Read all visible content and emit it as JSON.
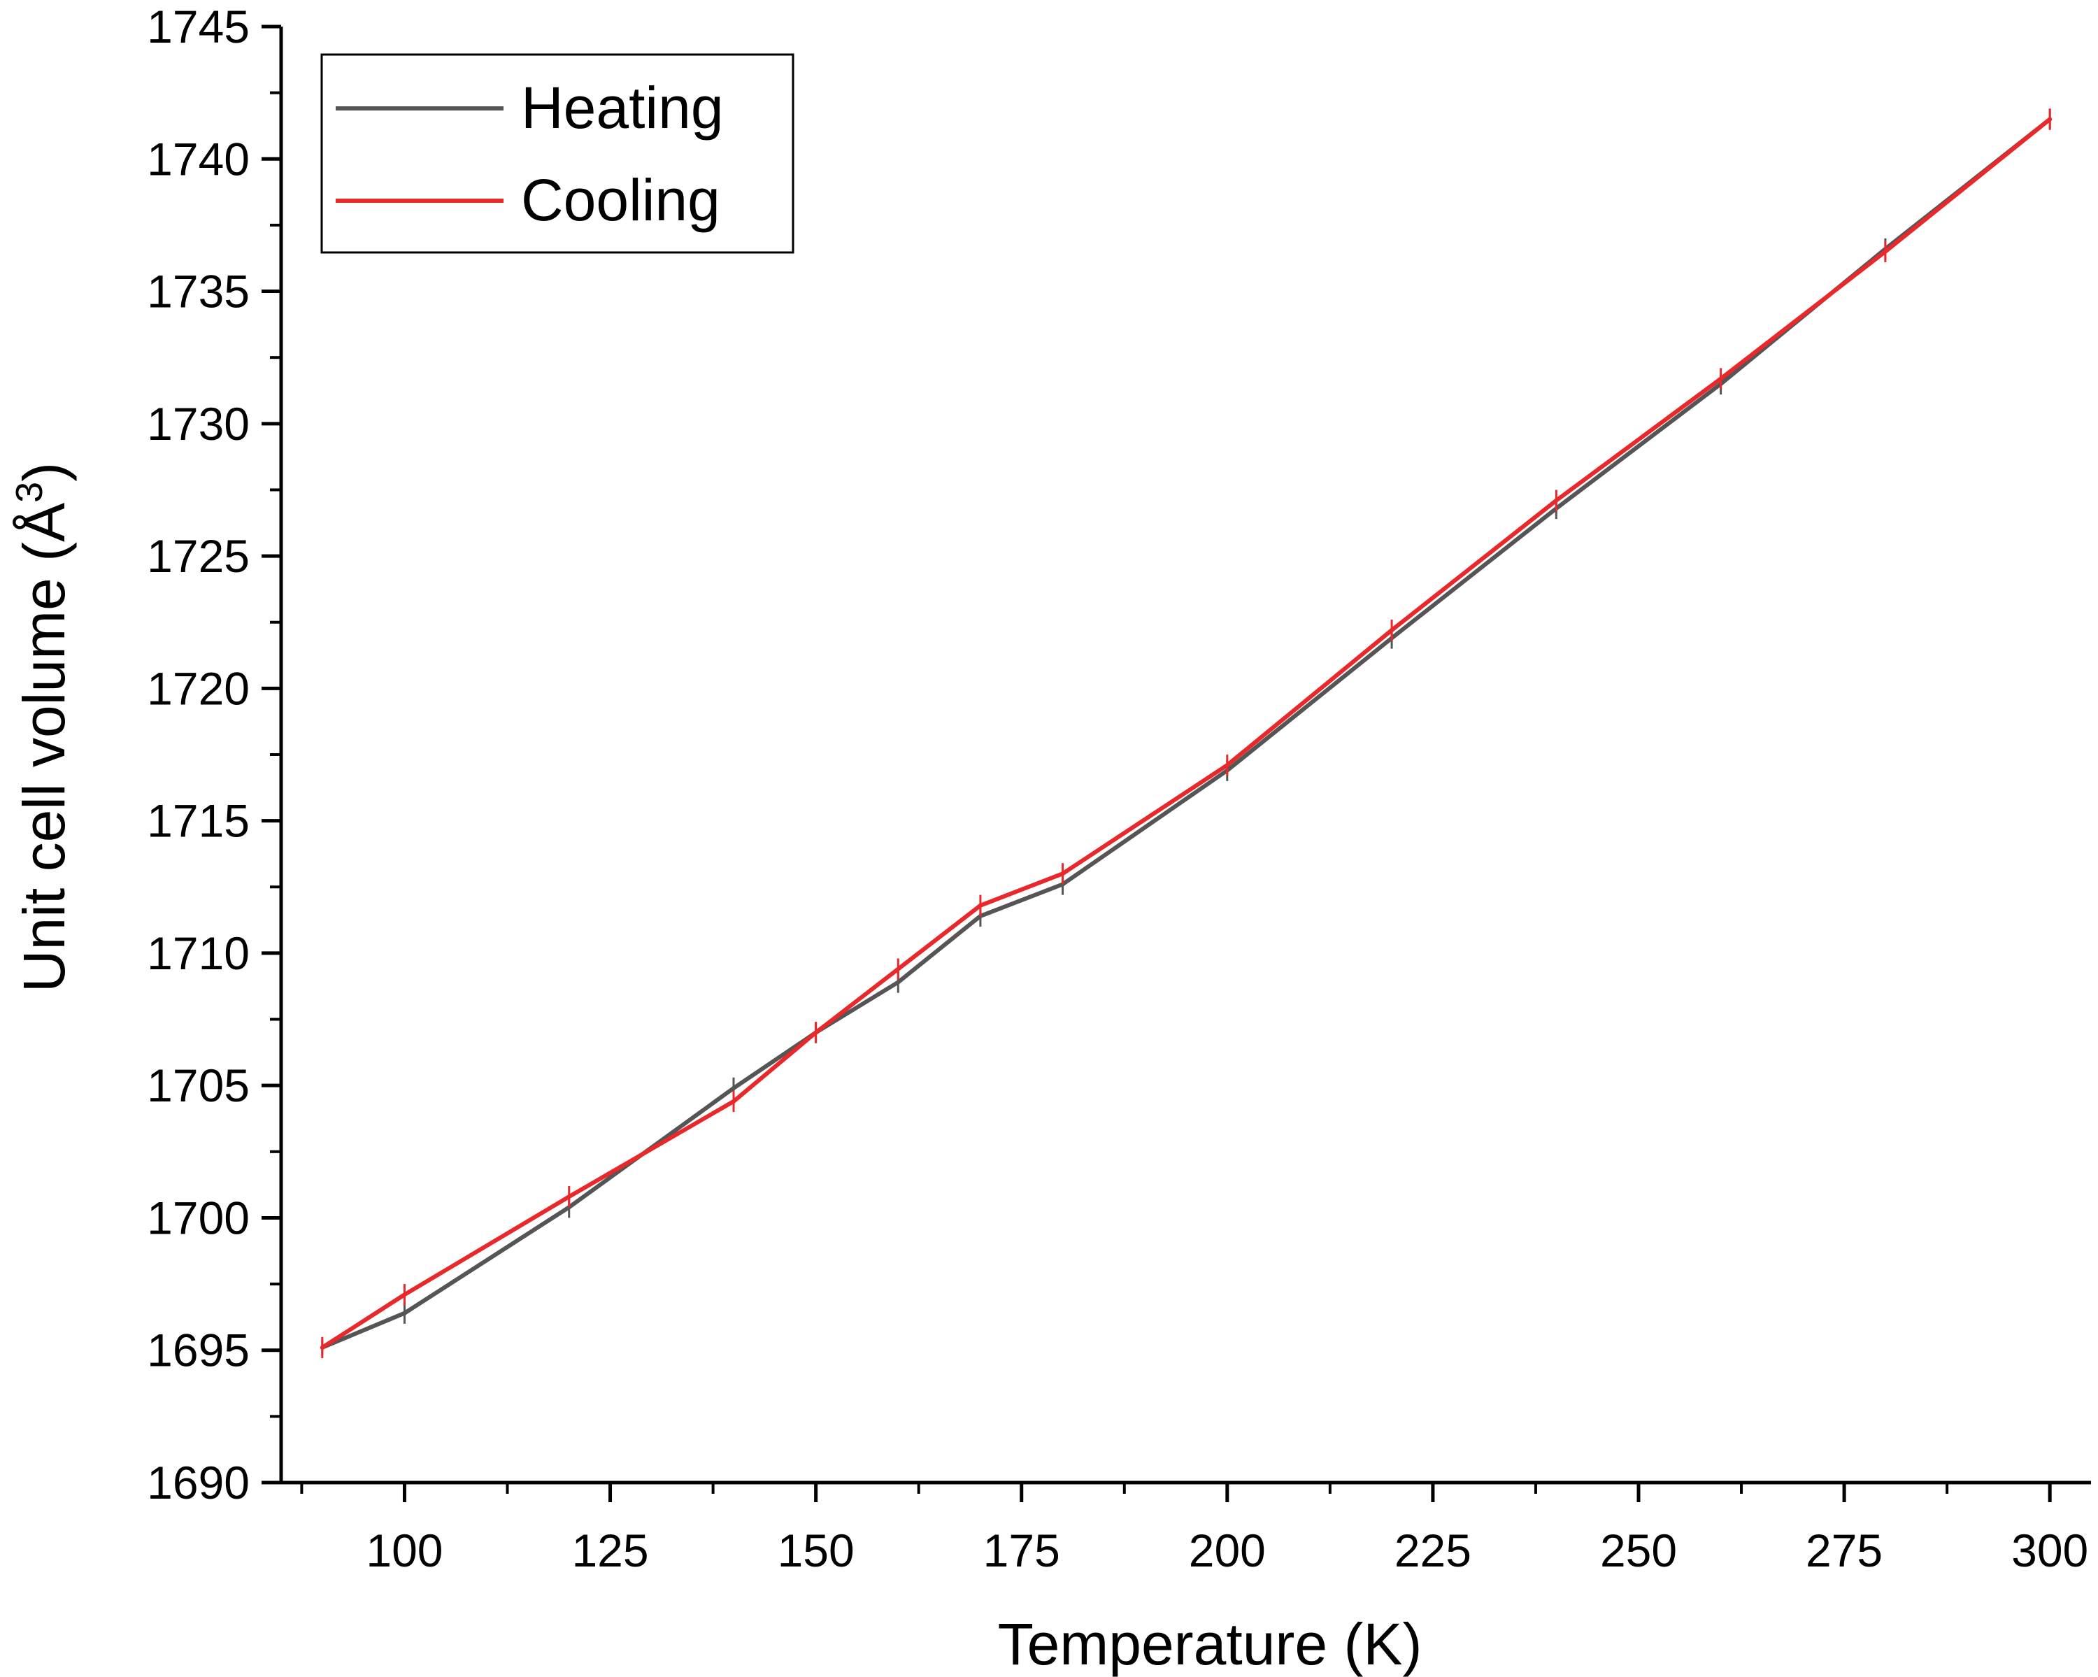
{
  "chart_data": {
    "type": "line",
    "title": "",
    "xlabel": "Temperature (K)",
    "ylabel": "Unit cell volume (Å",
    "ylabel_superscript": "3",
    "ylabel_close": ")",
    "xlim": [
      85,
      305
    ],
    "ylim": [
      1690,
      1745
    ],
    "x_ticks": [
      100,
      125,
      150,
      175,
      200,
      225,
      250,
      275,
      300
    ],
    "x_tick_labels": [
      "100",
      "125",
      "150",
      "175",
      "200",
      "225",
      "250",
      "275",
      "300"
    ],
    "y_ticks": [
      1690,
      1695,
      1700,
      1705,
      1710,
      1715,
      1720,
      1725,
      1730,
      1735,
      1740,
      1745
    ],
    "y_tick_labels": [
      "1690",
      "1695",
      "1700",
      "1705",
      "1710",
      "1715",
      "1720",
      "1725",
      "1730",
      "1735",
      "1740",
      "1745"
    ],
    "grid": false,
    "legend_position": "top-left",
    "error_bars": true,
    "series": [
      {
        "name": "Heating",
        "color": "#555555",
        "x": [
          90,
          100,
          120,
          140,
          150,
          160,
          170,
          180,
          200,
          220,
          240,
          260,
          280,
          300
        ],
        "y": [
          1695.1,
          1696.4,
          1700.4,
          1704.9,
          1707.0,
          1708.9,
          1711.4,
          1712.6,
          1716.9,
          1721.9,
          1726.8,
          1731.5,
          1736.6,
          1741.5
        ],
        "err": [
          0.3,
          0.4,
          0.4,
          0.4,
          0.4,
          0.4,
          0.4,
          0.4,
          0.4,
          0.4,
          0.4,
          0.4,
          0.4,
          0.4
        ]
      },
      {
        "name": "Cooling",
        "color": "#e8282b",
        "x": [
          90,
          100,
          120,
          140,
          150,
          160,
          170,
          180,
          200,
          220,
          240,
          260,
          280,
          300
        ],
        "y": [
          1695.1,
          1697.1,
          1700.8,
          1704.4,
          1707.0,
          1709.4,
          1711.8,
          1713.0,
          1717.1,
          1722.2,
          1727.1,
          1731.7,
          1736.5,
          1741.5
        ],
        "err": [
          0.4,
          0.4,
          0.4,
          0.4,
          0.4,
          0.4,
          0.4,
          0.4,
          0.4,
          0.4,
          0.4,
          0.4,
          0.4,
          0.4
        ]
      }
    ]
  }
}
